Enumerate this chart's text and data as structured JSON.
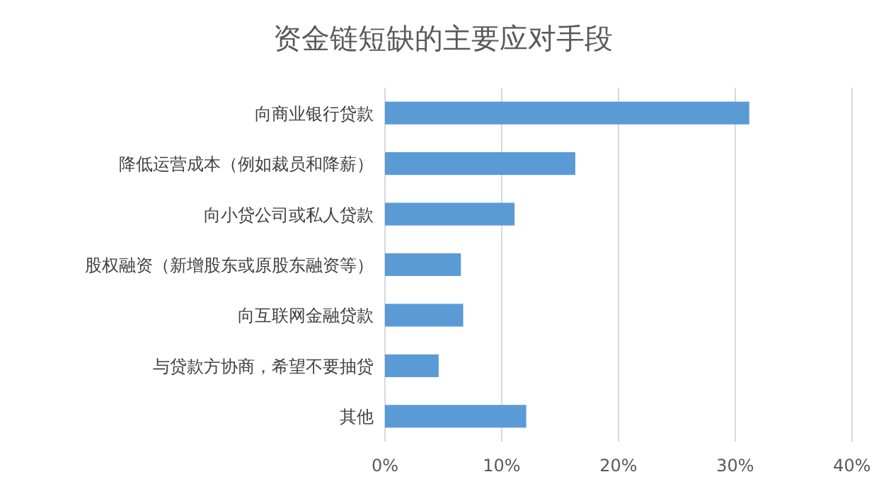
{
  "chart_data": {
    "type": "bar",
    "orientation": "horizontal",
    "title": "资金链短缺的主要应对手段",
    "categories": [
      "向商业银行贷款",
      "降低运营成本（例如裁员和降薪）",
      "向小贷公司或私人贷款",
      "股权融资（新增股东或原股东融资等）",
      "向互联网金融贷款",
      "与贷款方协商，希望不要抽贷",
      "其他"
    ],
    "values": [
      31.2,
      16.3,
      11.1,
      6.5,
      6.7,
      4.6,
      12.1
    ],
    "color": "#5b9bd5",
    "xlim": [
      0,
      40
    ],
    "xticks": [
      {
        "value": 0,
        "label": "0%"
      },
      {
        "value": 10,
        "label": "10%"
      },
      {
        "value": 20,
        "label": "20%"
      },
      {
        "value": 30,
        "label": "30%"
      },
      {
        "value": 40,
        "label": "40%"
      }
    ],
    "grid": "x"
  }
}
